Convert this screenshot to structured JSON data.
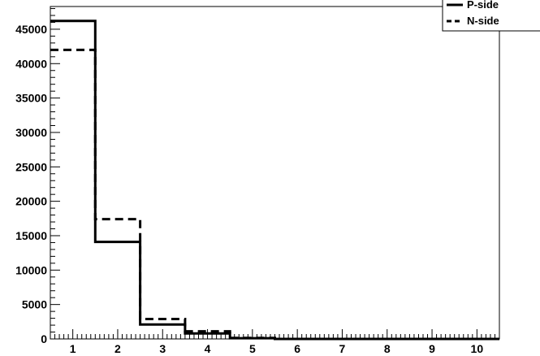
{
  "chart_data": {
    "type": "step",
    "x_bin_edges": [
      0.5,
      1.5,
      2.5,
      3.5,
      4.5,
      5.5,
      6.5,
      7.5,
      8.5,
      9.5,
      10.5
    ],
    "xlim": [
      0.5,
      10.5
    ],
    "ylim": [
      0,
      48300
    ],
    "x_tick_labels": [
      "1",
      "2",
      "3",
      "4",
      "5",
      "6",
      "7",
      "8",
      "9",
      "10"
    ],
    "y_tick_labels": [
      "0",
      "5000",
      "10000",
      "15000",
      "20000",
      "25000",
      "30000",
      "35000",
      "40000",
      "45000"
    ],
    "y_tick_values": [
      0,
      5000,
      10000,
      15000,
      20000,
      25000,
      30000,
      35000,
      40000,
      45000
    ],
    "grid": false,
    "legend_position": "top-right",
    "series": [
      {
        "name": "P-side",
        "style": "solid",
        "values": [
          46200,
          14100,
          2100,
          800,
          100,
          0,
          0,
          0,
          0,
          0
        ]
      },
      {
        "name": "N-side",
        "style": "dashed",
        "values": [
          42000,
          17400,
          2900,
          1100,
          150,
          0,
          0,
          0,
          0,
          0
        ]
      }
    ]
  }
}
